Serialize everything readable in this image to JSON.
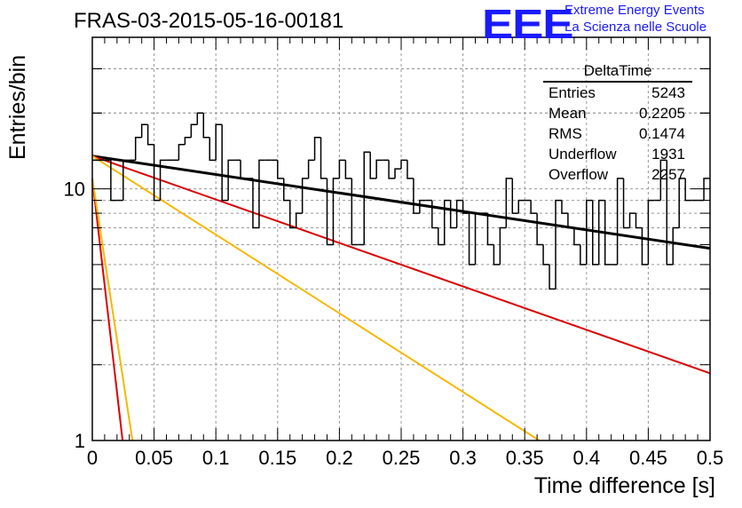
{
  "header": {
    "title": "FRAS-03-2015-05-16-00181",
    "logo_text": "EEE",
    "org_line1": "Extreme Energy Events",
    "org_line2": "La Scienza nelle Scuole"
  },
  "stats_box": {
    "title": "DeltaTime",
    "rows": [
      {
        "label": "Entries",
        "value": "5243"
      },
      {
        "label": "Mean",
        "value": "0.2205"
      },
      {
        "label": "RMS",
        "value": "0.1474"
      },
      {
        "label": "Underflow",
        "value": "1931"
      },
      {
        "label": "Overflow",
        "value": "2257"
      }
    ]
  },
  "colors": {
    "histogram": "#000000",
    "fit_main": "#000000",
    "fit_red": "#dd0000",
    "fit_yellow": "#f5b800",
    "grid": "#999999",
    "logo": "#1a1aff"
  },
  "chart_data": {
    "type": "histogram",
    "xlabel": "Time difference [s]",
    "ylabel": "Entries/bin",
    "xlim": [
      0,
      0.5
    ],
    "ylim": [
      1,
      40
    ],
    "yscale": "log",
    "grid": true,
    "xticks": [
      "0",
      "0.05",
      "0.1",
      "0.15",
      "0.2",
      "0.25",
      "0.3",
      "0.35",
      "0.4",
      "0.45",
      "0.5"
    ],
    "yticks": [
      "1",
      "10"
    ],
    "bin_width": 0.005,
    "bin_counts": [
      13,
      13,
      13,
      9,
      9,
      13,
      13,
      16,
      18,
      15,
      9,
      13,
      13,
      13,
      15,
      16,
      18,
      20,
      16,
      13,
      18,
      9,
      13,
      13,
      11,
      11,
      7,
      13,
      13,
      13,
      11,
      9,
      7,
      8,
      11,
      13,
      16,
      11,
      6,
      11,
      13,
      11,
      6,
      6,
      14,
      11,
      13,
      13,
      11,
      12,
      13,
      11,
      8,
      9,
      9,
      7,
      6,
      9,
      7,
      9,
      8,
      5,
      8,
      8,
      6,
      5,
      7,
      11,
      8,
      9,
      9,
      8,
      6,
      5,
      4,
      9,
      8,
      7,
      6,
      5,
      9,
      5,
      9,
      5,
      5,
      11,
      7,
      8,
      7,
      5,
      9,
      9,
      13,
      5,
      7,
      11,
      9,
      9,
      9,
      11
    ],
    "fits": [
      {
        "color": "black",
        "y_at_0": 13.5,
        "y_at_05": 5.8
      },
      {
        "color": "red",
        "y_at_0": 13.5,
        "y_at_05": 1.85
      },
      {
        "color": "yellow",
        "y_at_0": 13.5,
        "y_at_05": 0.37
      },
      {
        "color": "red",
        "y_at_0": 11.0,
        "y_at_end": 1.0,
        "x_end": 0.0245
      },
      {
        "color": "yellow",
        "y_at_0": 11.0,
        "y_at_end": 1.0,
        "x_end": 0.0325
      }
    ]
  }
}
